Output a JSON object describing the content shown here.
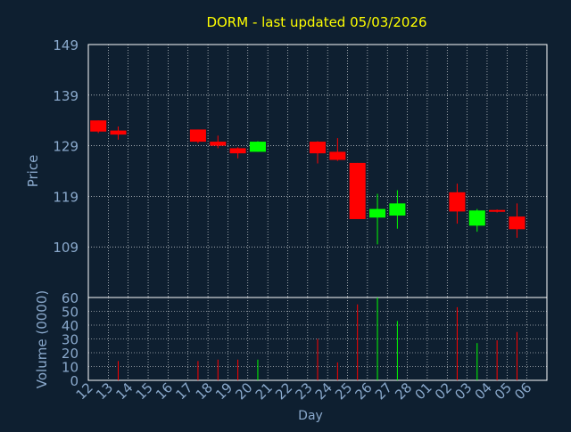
{
  "colors": {
    "background": "#0e1f30",
    "plot_border": "#ffffff",
    "grid": "#ffffff",
    "title": "#ffff00",
    "axis_text": "#8aa9cc",
    "up": "#00ff00",
    "down": "#ff0000"
  },
  "chart_data": {
    "type": "candlestick",
    "title": "DORM - last updated 05/03/2026",
    "x": [
      "12",
      "13",
      "14",
      "15",
      "16",
      "17",
      "18",
      "19",
      "20",
      "21",
      "22",
      "23",
      "24",
      "25",
      "26",
      "27",
      "28",
      "01",
      "02",
      "03",
      "04",
      "05",
      "06"
    ],
    "xlabel": "Day",
    "price_panel": {
      "ylabel": "Price",
      "ylim": [
        99,
        149
      ],
      "yticks": [
        "149",
        "139",
        "129",
        "119",
        "109"
      ],
      "grid": true
    },
    "volume_panel": {
      "ylabel": "Volume (0000)",
      "ylim": [
        0,
        60
      ],
      "yticks": [
        "60",
        "50",
        "40",
        "30",
        "20",
        "10",
        "0"
      ],
      "grid": true
    },
    "candles": [
      {
        "day": "12",
        "open": 134.0,
        "high": 134.0,
        "low": 131.5,
        "close": 131.8,
        "volume": 0
      },
      {
        "day": "13",
        "open": 132.0,
        "high": 132.8,
        "low": 130.2,
        "close": 131.2,
        "volume": 14
      },
      {
        "day": "17",
        "open": 132.2,
        "high": 132.2,
        "low": 129.5,
        "close": 129.8,
        "volume": 14
      },
      {
        "day": "18",
        "open": 129.8,
        "high": 131.0,
        "low": 128.5,
        "close": 129.0,
        "volume": 15
      },
      {
        "day": "19",
        "open": 128.5,
        "high": 128.7,
        "low": 126.5,
        "close": 127.5,
        "volume": 15
      },
      {
        "day": "20",
        "open": 127.8,
        "high": 129.9,
        "low": 127.8,
        "close": 129.8,
        "volume": 15
      },
      {
        "day": "23",
        "open": 129.8,
        "high": 129.9,
        "low": 125.5,
        "close": 127.5,
        "volume": 30
      },
      {
        "day": "24",
        "open": 127.8,
        "high": 130.5,
        "low": 126.0,
        "close": 126.2,
        "volume": 13
      },
      {
        "day": "25",
        "open": 125.6,
        "high": 125.6,
        "low": 114.5,
        "close": 114.5,
        "volume": 55
      },
      {
        "day": "26",
        "open": 114.8,
        "high": 119.5,
        "low": 109.5,
        "close": 116.5,
        "volume": 60
      },
      {
        "day": "27",
        "open": 115.2,
        "high": 120.2,
        "low": 112.6,
        "close": 117.6,
        "volume": 43
      },
      {
        "day": "02",
        "open": 119.8,
        "high": 121.5,
        "low": 113.6,
        "close": 116.0,
        "volume": 53
      },
      {
        "day": "03",
        "open": 113.2,
        "high": 116.5,
        "low": 112.0,
        "close": 116.2,
        "volume": 27
      },
      {
        "day": "04",
        "open": 116.3,
        "high": 116.4,
        "low": 115.8,
        "close": 116.0,
        "volume": 29
      },
      {
        "day": "05",
        "open": 115.0,
        "high": 117.6,
        "low": 110.8,
        "close": 112.5,
        "volume": 35
      }
    ]
  }
}
